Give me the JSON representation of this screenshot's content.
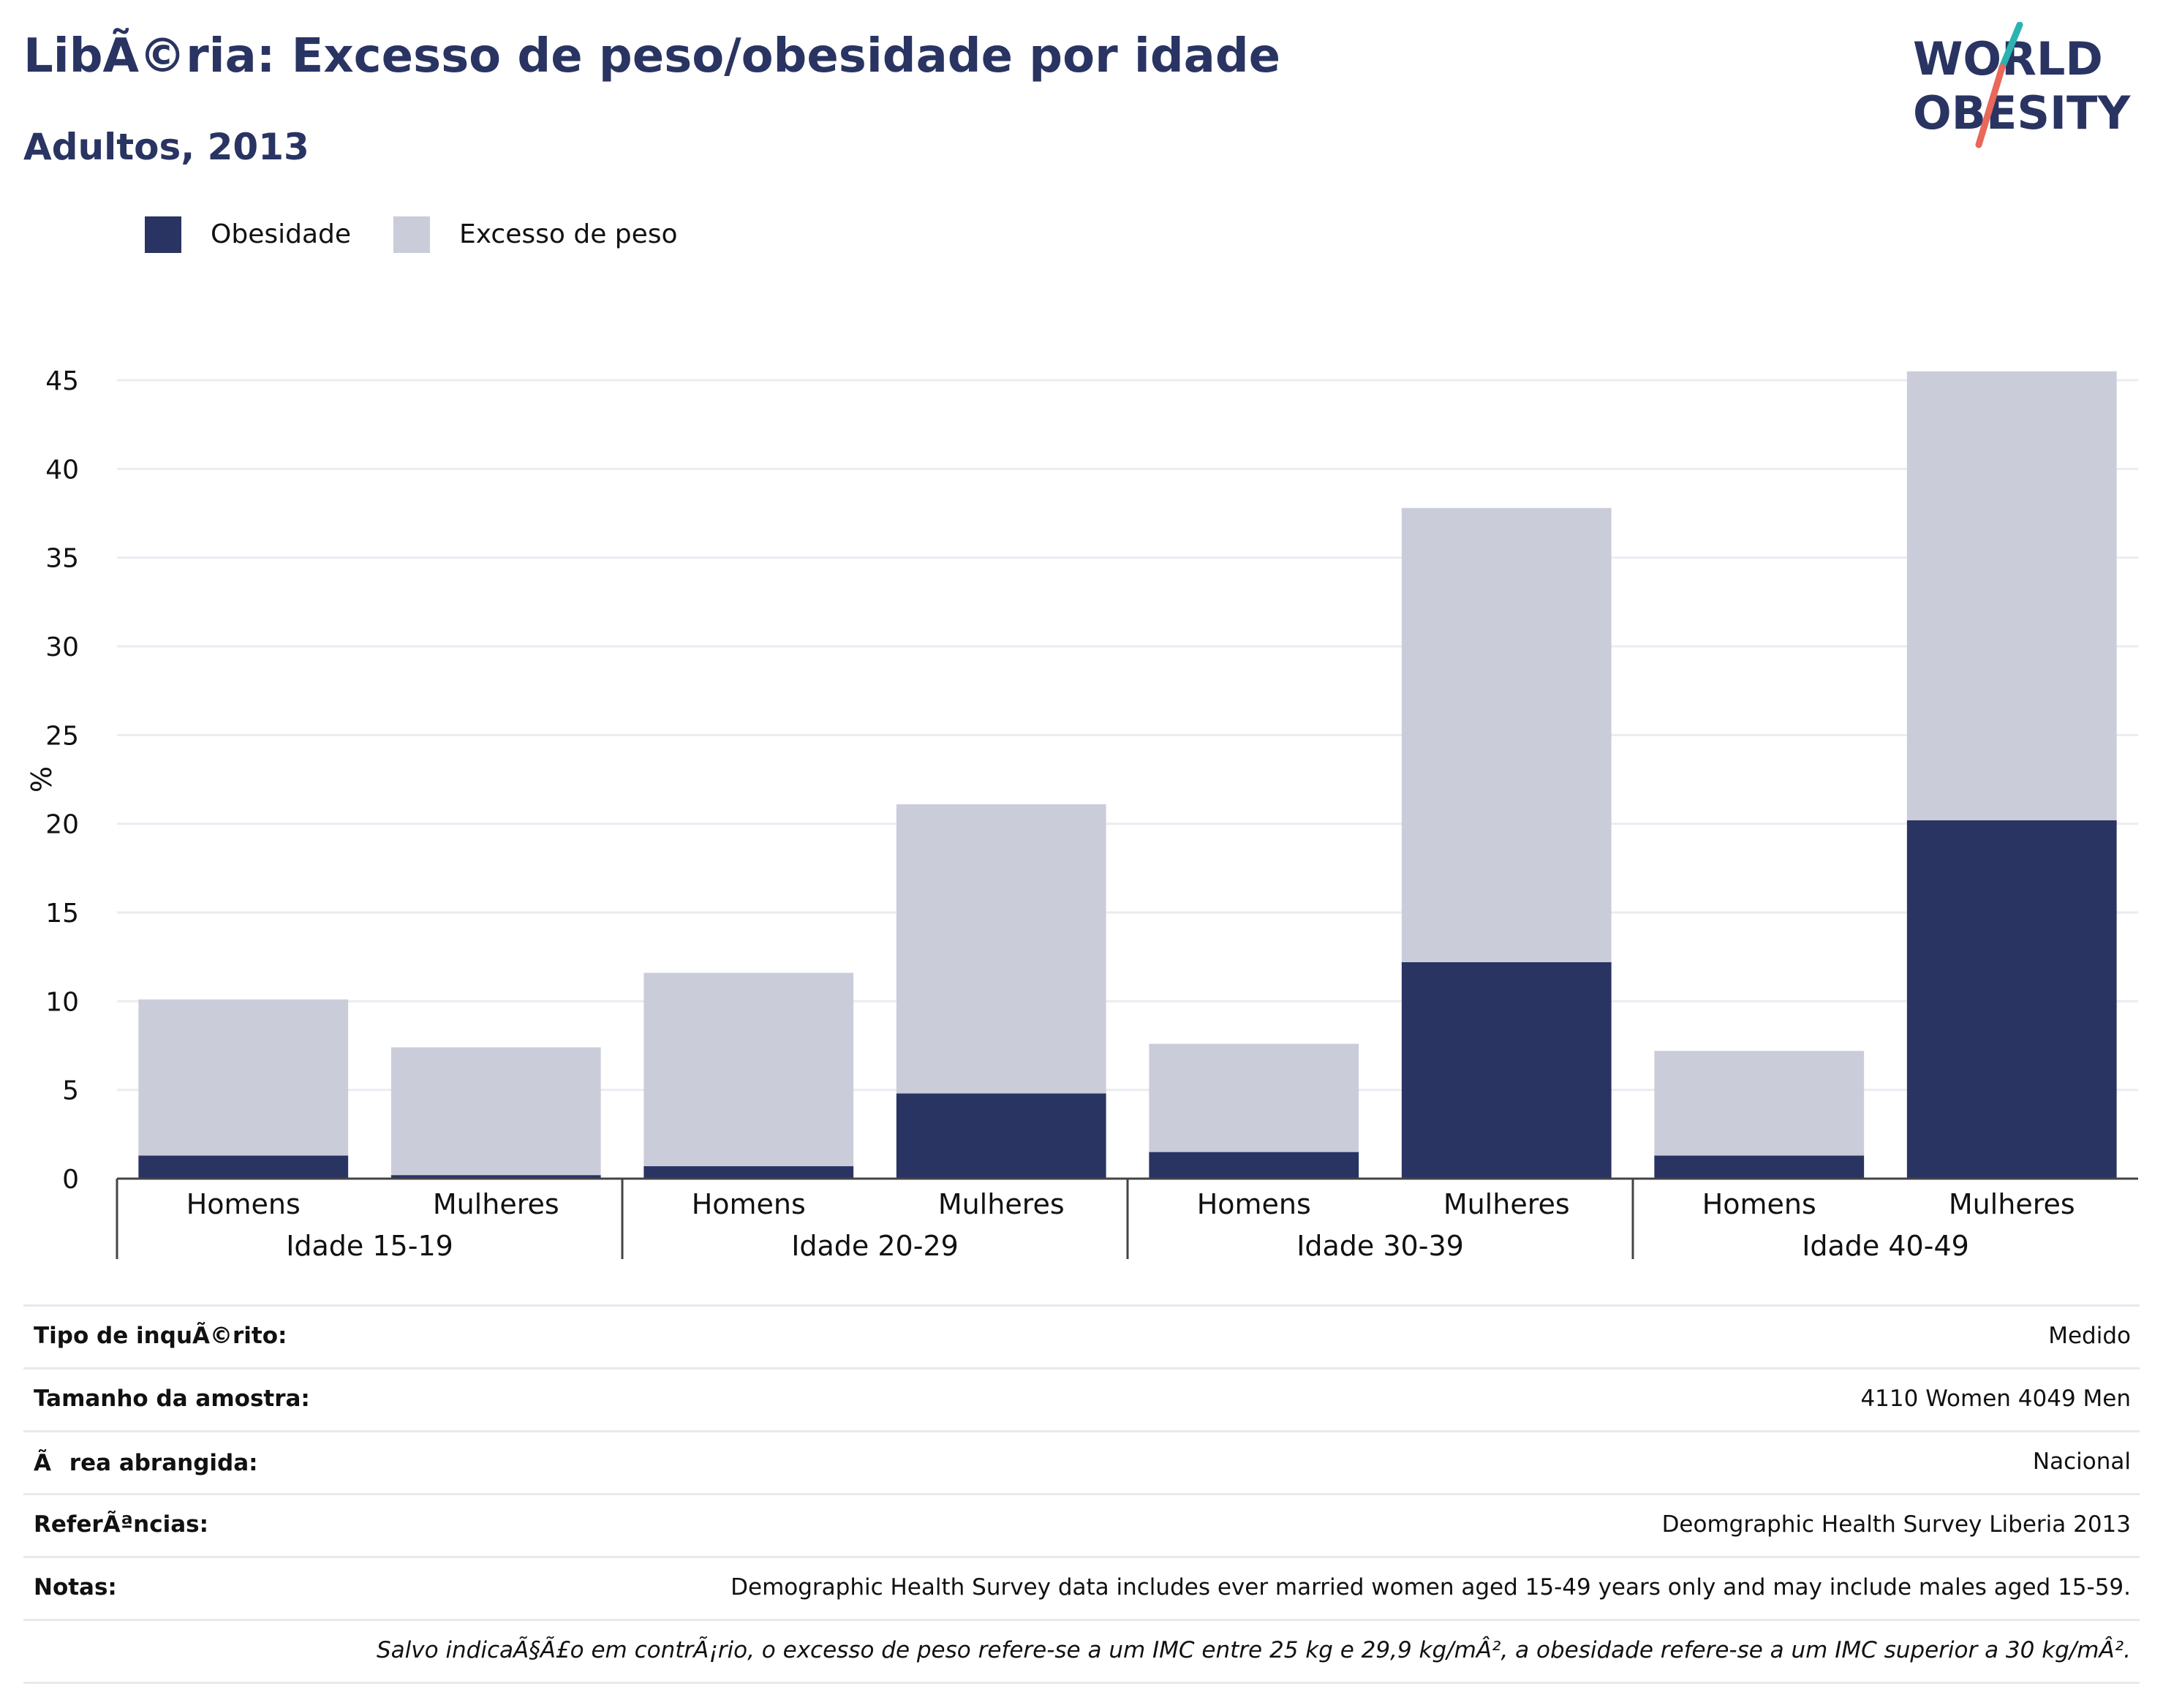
{
  "header": {
    "title": "LibÃ©ria: Excesso de peso/obesidade por idade",
    "subtitle": "Adultos, 2013"
  },
  "logo": {
    "line1": "WORLD",
    "line2": "OBESITY",
    "accent_colors": [
      "#2bb3b1",
      "#e8685a"
    ]
  },
  "colors": {
    "obesity": "#293462",
    "overweight": "#cacdd9",
    "grid": "#ebebf2",
    "axis": "#444444"
  },
  "legend": {
    "items": [
      {
        "label": "Obesidade",
        "color": "#293462"
      },
      {
        "label": "Excesso de peso",
        "color": "#cacdd9"
      }
    ]
  },
  "chart_data": {
    "type": "bar",
    "stacked": true,
    "title": "",
    "xlabel": "",
    "ylabel": "%",
    "ylim": [
      0,
      45
    ],
    "yticks": [
      0,
      5,
      10,
      15,
      20,
      25,
      30,
      35,
      40,
      45
    ],
    "grid": true,
    "legend_position": "top-left",
    "groups": [
      "Idade 15-19",
      "Idade 20-29",
      "Idade 30-39",
      "Idade 40-49"
    ],
    "categories": [
      "Homens",
      "Mulheres",
      "Homens",
      "Mulheres",
      "Homens",
      "Mulheres",
      "Homens",
      "Mulheres"
    ],
    "series": [
      {
        "name": "Obesidade",
        "values": [
          1.3,
          0.2,
          0.7,
          4.8,
          1.5,
          12.2,
          1.3,
          20.2
        ]
      },
      {
        "name": "Excesso de peso",
        "values": [
          8.8,
          7.2,
          10.9,
          16.3,
          6.1,
          25.6,
          5.9,
          25.3
        ]
      }
    ]
  },
  "info": {
    "rows": [
      {
        "label": "Tipo de inquÃ©rito:",
        "value": "Medido"
      },
      {
        "label": "Tamanho da amostra:",
        "value": "4110 Women 4049 Men"
      },
      {
        "label": "Ãrea abrangida:",
        "value": "Nacional"
      },
      {
        "label": "ReferÃªncias:",
        "value": "Deomgraphic Health Survey Liberia 2013"
      },
      {
        "label": "Notas:",
        "value": "Demographic Health Survey data includes ever married women aged 15-49 years only and may include males aged 15-59."
      }
    ],
    "footnote": "Salvo indicaÃ§Ã£o em contrÃ¡rio, o excesso de peso refere-se a um IMC entre 25 kg e 29,9 kg/mÂ², a obesidade refere-se a um IMC superior a 30 kg/mÂ²."
  }
}
